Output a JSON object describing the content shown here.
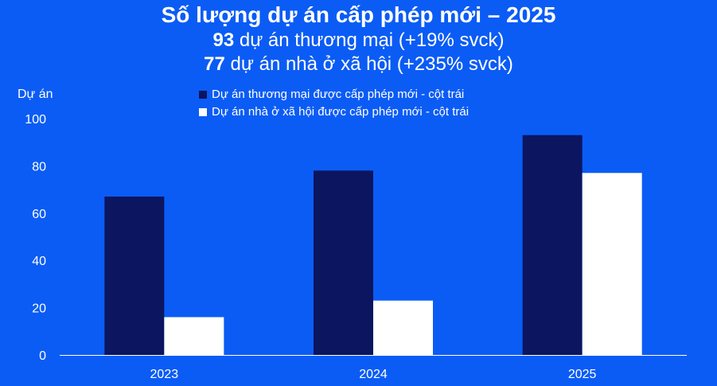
{
  "chart_data": {
    "type": "bar",
    "title": "Số lượng dự án cấp phép mới – 2025",
    "subtitle_lines": [
      {
        "value": "93",
        "text": " dự án thương mại (+19% svck)"
      },
      {
        "value": "77",
        "text": " dự án nhà ở xã hội (+235% svck)"
      }
    ],
    "ylabel": "Dự án",
    "xlabel": "",
    "ylim": [
      0,
      100
    ],
    "yticks": [
      0,
      20,
      40,
      60,
      80,
      100
    ],
    "categories": [
      "2023",
      "2024",
      "2025"
    ],
    "series": [
      {
        "name": "Dự án thương mại được cấp phép mới - cột trái",
        "color": "#0b1560",
        "values": [
          67,
          78,
          93
        ]
      },
      {
        "name": "Dự án nhà ở xã hội được cấp phép mới - cột trái",
        "color": "#ffffff",
        "values": [
          16,
          23,
          77
        ]
      }
    ],
    "grid": false,
    "legend_position": "top-center"
  }
}
